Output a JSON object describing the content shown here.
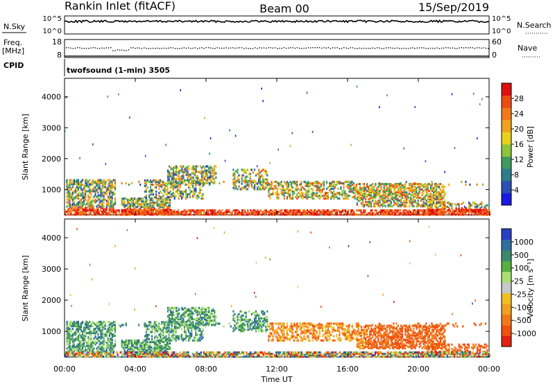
{
  "header": {
    "station": "Rankin Inlet (fitACF)",
    "beam": "Beam 00",
    "date": "15/Sep/2019"
  },
  "top_panels": {
    "nsky": {
      "label": "N.Sky",
      "ticks": [
        "10^5",
        "10^0"
      ],
      "right_ticks": [
        "10^5",
        "10^0"
      ],
      "right_label": "N.Search",
      "level": 0.7
    },
    "freq": {
      "label_top": "Freq.",
      "label_unit": "[MHz]",
      "ticks": [
        "18",
        "8"
      ],
      "right_ticks": [
        "60",
        "0"
      ],
      "right_label": "Nave",
      "freq_level": 0.08,
      "nave_level": 0.55
    },
    "cpid": {
      "label": "CPID",
      "text": "twofsound (1-min) 3505"
    }
  },
  "chart_data": [
    {
      "type": "heatmap",
      "name": "power",
      "ylabel": "Slant Range [km]",
      "ylim": [
        180,
        4600
      ],
      "yticks": [
        1000,
        2000,
        3000,
        4000
      ],
      "xlim": [
        0,
        24
      ],
      "xticks": [
        0,
        4,
        8,
        12,
        16,
        20,
        24
      ],
      "colorbar": {
        "label": "Power [dB]",
        "range": [
          0,
          32
        ],
        "ticks": [
          4,
          8,
          12,
          16,
          20,
          24,
          28
        ],
        "colors": [
          "#1a1ae0",
          "#2b4fb5",
          "#2e7d8a",
          "#3f9a5f",
          "#8cc43a",
          "#e6d21a",
          "#f0a21e",
          "#f07a1a",
          "#ee4a14",
          "#e01010"
        ]
      }
    },
    {
      "type": "heatmap",
      "name": "velocity",
      "ylabel": "Slant Range [km]",
      "ylim": [
        180,
        4600
      ],
      "yticks": [
        1000,
        2000,
        3000,
        4000
      ],
      "xlim": [
        0,
        24
      ],
      "xticks": [
        0,
        4,
        8,
        12,
        16,
        20,
        24
      ],
      "xlabel": "Time UT",
      "colorbar": {
        "label": "Velocity [m s⁻¹]",
        "ticks": [
          "1000",
          "500",
          "100",
          "25",
          "-25",
          "-100",
          "-500",
          "-1000"
        ],
        "colors": [
          "#2b3fbf",
          "#2e6fa0",
          "#3a8a6a",
          "#55b040",
          "#a8e070",
          "#c8c8c8",
          "#f0c020",
          "#f0a020",
          "#f07818",
          "#f05010",
          "#e02010"
        ]
      }
    }
  ],
  "xtick_labels": [
    "00:00",
    "04:00",
    "08:00",
    "12:00",
    "16:00",
    "20:00",
    "00:00"
  ],
  "xlabel": "Time UT"
}
